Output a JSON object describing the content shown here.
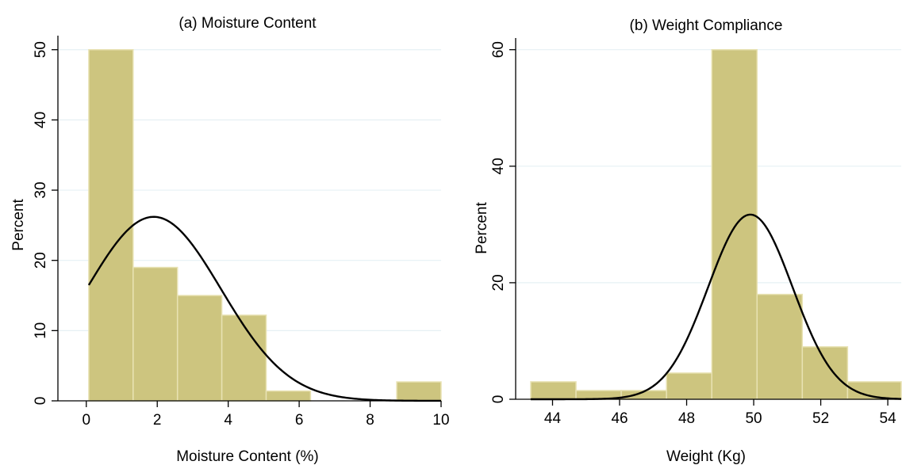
{
  "colors": {
    "bar_fill": "#cdc57f",
    "bar_stroke": "#e8e2b3",
    "curve": "#000000",
    "grid": "#e6f0f4",
    "axis": "#000000"
  },
  "chart_data": [
    {
      "type": "bar",
      "subtype": "histogram",
      "title": "(a) Moisture Content",
      "xlabel": "Moisture Content (%)",
      "ylabel": "Percent",
      "xlim": [
        -0.8,
        10
      ],
      "ylim": [
        0,
        52
      ],
      "xticks": [
        0,
        2,
        4,
        6,
        8,
        10
      ],
      "yticks": [
        0,
        10,
        20,
        30,
        40,
        50
      ],
      "grid": true,
      "bins": [
        {
          "x0": 0.07,
          "x1": 1.32,
          "value": 50
        },
        {
          "x0": 1.32,
          "x1": 2.57,
          "value": 19
        },
        {
          "x0": 2.57,
          "x1": 3.82,
          "value": 15
        },
        {
          "x0": 3.82,
          "x1": 5.07,
          "value": 12.2
        },
        {
          "x0": 5.07,
          "x1": 6.32,
          "value": 1.4
        },
        {
          "x0": 8.75,
          "x1": 10.0,
          "value": 2.7
        }
      ],
      "normal_curve": {
        "mean": 1.9,
        "sd": 1.9,
        "peak": 26.2,
        "x_range": [
          0.07,
          10
        ]
      }
    },
    {
      "type": "bar",
      "subtype": "histogram",
      "title": "(b) Weight Compliance",
      "xlabel": "Weight (Kg)",
      "ylabel": "Percent",
      "xlim": [
        42.9,
        54.4
      ],
      "ylim": [
        0,
        62
      ],
      "xticks": [
        44,
        46,
        48,
        50,
        52,
        54
      ],
      "yticks": [
        0,
        20,
        40,
        60
      ],
      "grid": true,
      "bins": [
        {
          "x0": 43.35,
          "x1": 44.7,
          "value": 3
        },
        {
          "x0": 44.7,
          "x1": 46.05,
          "value": 1.5
        },
        {
          "x0": 46.05,
          "x1": 47.4,
          "value": 1.5
        },
        {
          "x0": 47.4,
          "x1": 48.75,
          "value": 4.5
        },
        {
          "x0": 48.75,
          "x1": 50.1,
          "value": 60
        },
        {
          "x0": 50.1,
          "x1": 51.45,
          "value": 18
        },
        {
          "x0": 51.45,
          "x1": 52.8,
          "value": 9
        },
        {
          "x0": 52.8,
          "x1": 54.4,
          "value": 3
        }
      ],
      "normal_curve": {
        "mean": 49.9,
        "sd": 1.26,
        "peak": 31.7,
        "x_range": [
          43.35,
          54.4
        ]
      }
    }
  ]
}
